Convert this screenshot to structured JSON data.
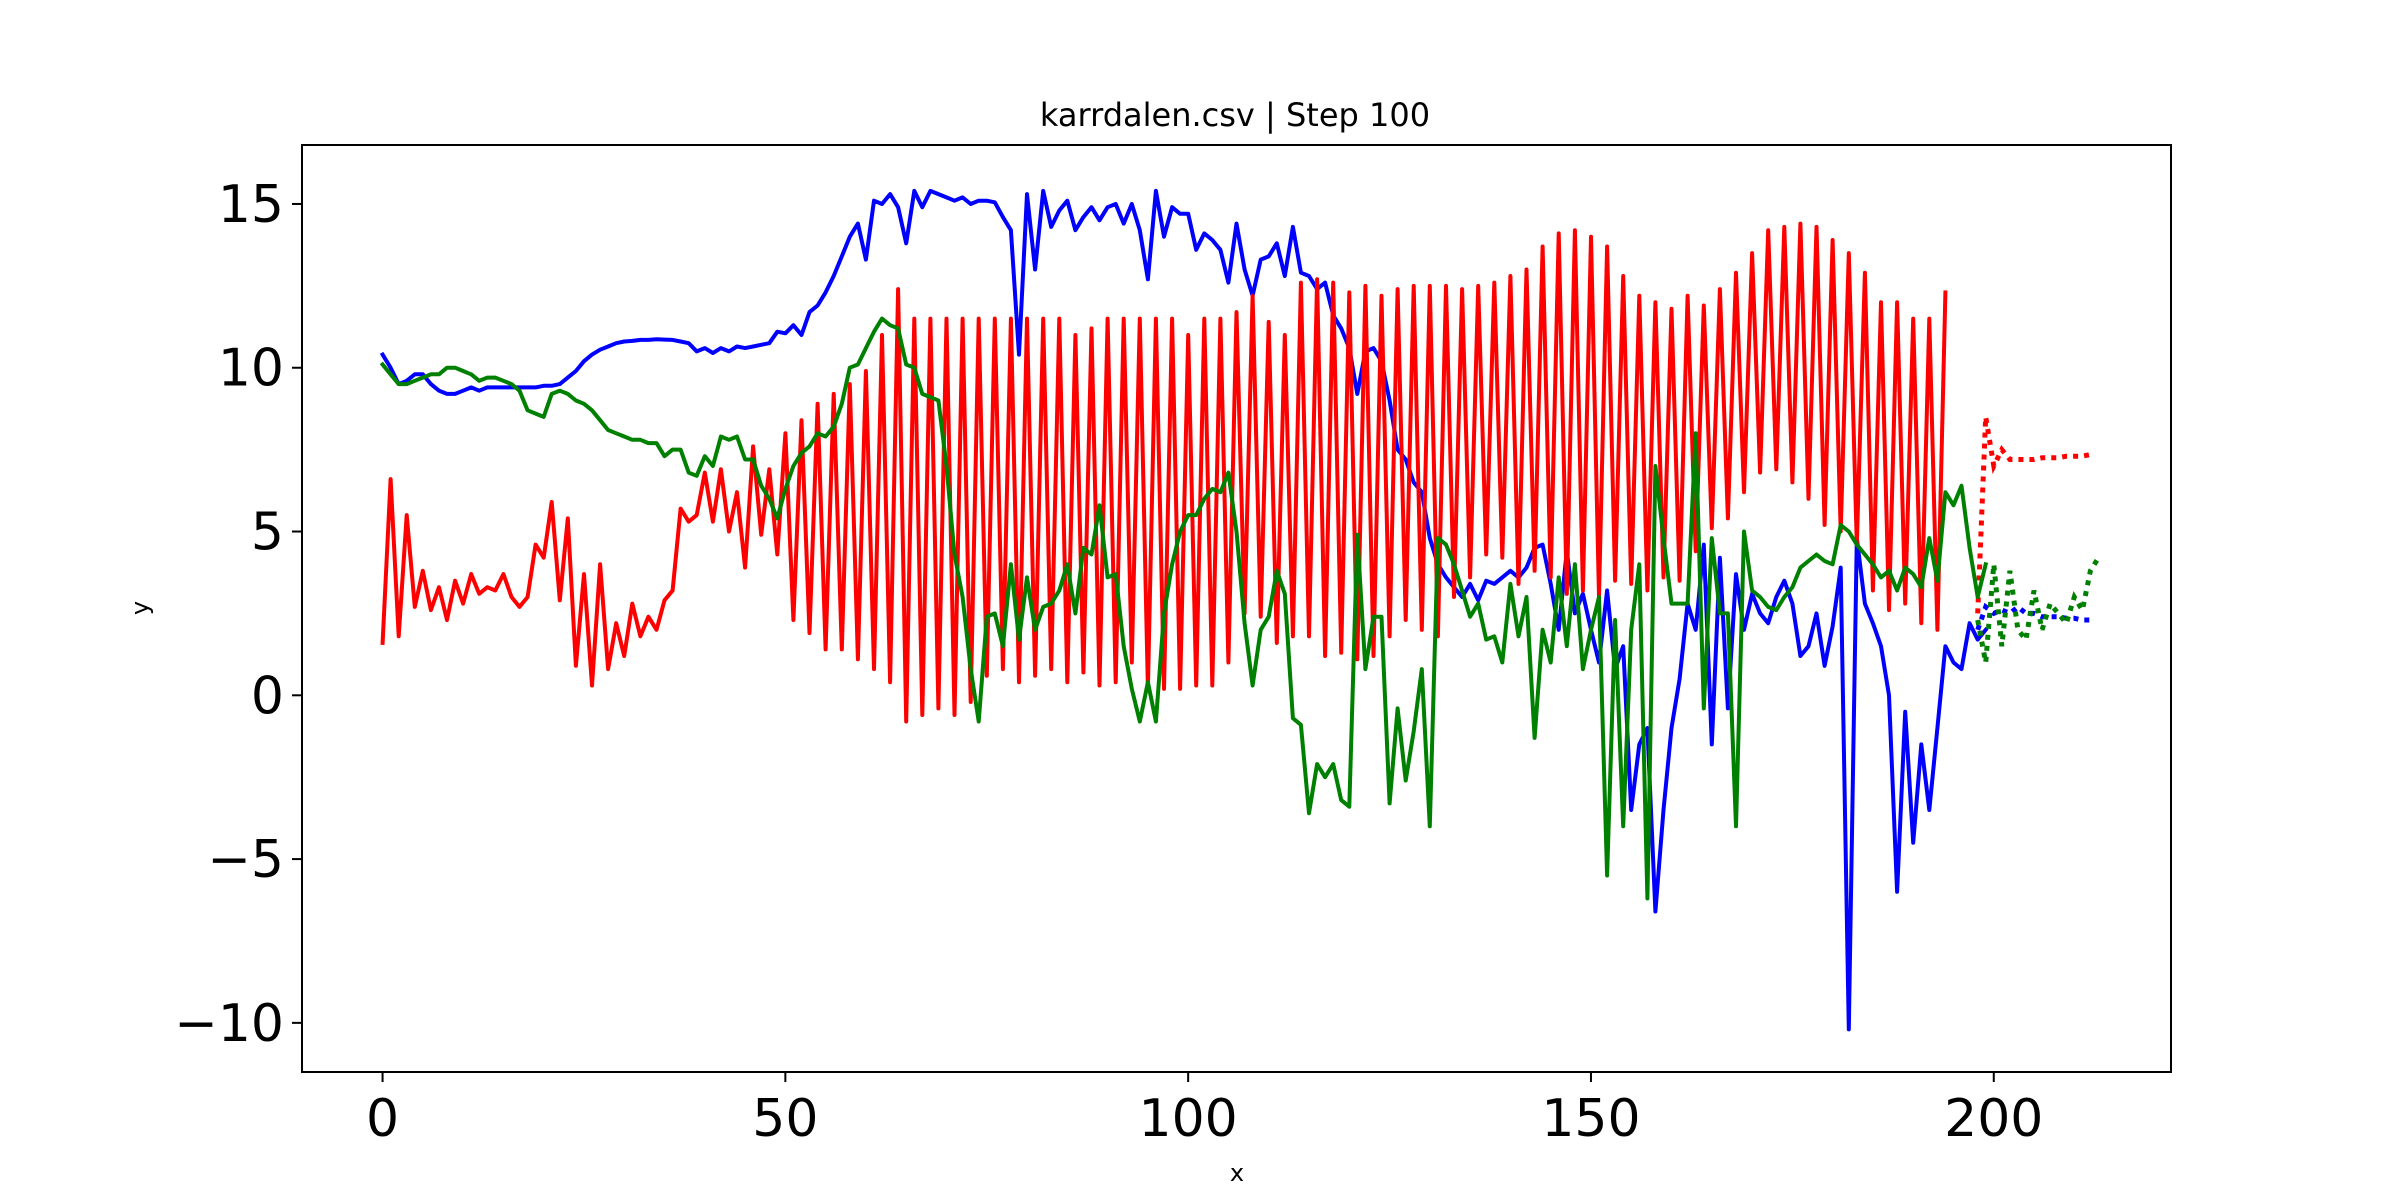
{
  "chart_data": {
    "type": "line",
    "title": "karrdalen.csv | Step 100",
    "xlabel": "x",
    "ylabel": "y",
    "xlim": [
      -10,
      222
    ],
    "ylim": [
      -11.5,
      16.8
    ],
    "xticks": [
      0,
      50,
      100,
      150,
      200
    ],
    "yticks": [
      -10,
      -5,
      0,
      5,
      10,
      15
    ],
    "xtick_labels": [
      "0",
      "50",
      "100",
      "150",
      "200"
    ],
    "ytick_labels": [
      "−10",
      "−5",
      "0",
      "5",
      "10",
      "15"
    ],
    "grid": false,
    "legend": "none",
    "series": [
      {
        "color": "#0000ff",
        "style": "solid",
        "x_start": 0,
        "values": [
          10.4,
          10.0,
          9.5,
          9.6,
          9.8,
          9.8,
          9.5,
          9.3,
          9.2,
          9.2,
          9.3,
          9.4,
          9.3,
          9.4,
          9.4,
          9.4,
          9.4,
          9.4,
          9.4,
          9.4,
          9.45,
          9.45,
          9.5,
          9.7,
          9.9,
          10.2,
          10.4,
          10.55,
          10.65,
          10.75,
          10.8,
          10.82,
          10.85,
          10.85,
          10.87,
          10.86,
          10.85,
          10.8,
          10.75,
          10.5,
          10.6,
          10.45,
          10.6,
          10.5,
          10.65,
          10.6,
          10.65,
          10.7,
          10.75,
          11.1,
          11.05,
          11.3,
          11.0,
          11.7,
          11.9,
          12.3,
          12.8,
          13.4,
          14.0,
          14.4,
          13.3,
          15.1,
          15.0,
          15.3,
          14.9,
          13.8,
          15.4,
          14.9,
          15.4,
          15.3,
          15.2,
          15.1,
          15.2,
          15.0,
          15.1,
          15.1,
          15.05,
          14.6,
          14.2,
          10.4,
          15.3,
          13.0,
          15.4,
          14.3,
          14.8,
          15.1,
          14.2,
          14.6,
          14.9,
          14.5,
          14.9,
          15.0,
          14.4,
          15.0,
          14.2,
          12.7,
          15.4,
          14.0,
          14.9,
          14.7,
          14.7,
          13.6,
          14.1,
          13.9,
          13.6,
          12.6,
          14.4,
          13.0,
          12.2,
          13.3,
          13.4,
          13.8,
          12.8,
          14.3,
          12.9,
          12.8,
          12.4,
          12.6,
          11.6,
          11.2,
          10.6,
          9.2,
          10.5,
          10.6,
          10.2,
          9.0,
          7.5,
          7.2,
          6.5,
          6.2,
          4.8,
          4.0,
          3.6,
          3.3,
          3.0,
          3.4,
          2.9,
          3.5,
          3.4,
          3.6,
          3.8,
          3.6,
          3.9,
          4.5,
          4.6,
          3.4,
          2.0,
          4.4,
          2.5,
          3.1,
          2.0,
          1.0,
          3.2,
          0.8,
          1.5,
          -3.5,
          -1.5,
          -1.0,
          -6.6,
          -3.5,
          -1.0,
          0.5,
          2.8,
          2.0,
          4.6,
          -1.5,
          4.2,
          -0.4,
          3.7,
          2.0,
          3.1,
          2.5,
          2.2,
          3.0,
          3.5,
          2.8,
          1.2,
          1.5,
          2.5,
          0.9,
          2.1,
          3.9,
          -10.2,
          4.8,
          2.8,
          2.2,
          1.5,
          0.0,
          -6.0,
          -0.5,
          -4.5,
          -1.5,
          -3.5,
          -1.0,
          1.5,
          1.0,
          0.8,
          2.2,
          1.7,
          2.0
        ],
        "forecast_x_start": 198,
        "forecast": [
          2.0,
          2.7,
          2.5,
          2.6,
          2.5,
          2.7,
          2.5,
          2.5,
          2.4,
          2.4,
          2.4,
          2.35,
          2.35,
          2.3,
          2.3
        ]
      },
      {
        "color": "#ff0000",
        "style": "solid",
        "x_start": 0,
        "values": [
          1.6,
          6.6,
          1.8,
          5.5,
          2.7,
          3.8,
          2.6,
          3.3,
          2.3,
          3.5,
          2.8,
          3.7,
          3.1,
          3.3,
          3.2,
          3.7,
          3.0,
          2.7,
          3.0,
          4.6,
          4.2,
          5.9,
          2.9,
          5.4,
          0.9,
          3.7,
          0.3,
          4.0,
          0.8,
          2.2,
          1.2,
          2.8,
          1.8,
          2.4,
          2.0,
          2.9,
          3.2,
          5.7,
          5.3,
          5.5,
          6.8,
          5.3,
          6.9,
          5.0,
          6.2,
          3.9,
          7.6,
          4.9,
          6.9,
          4.3,
          8.0,
          2.3,
          8.4,
          1.9,
          8.9,
          1.4,
          9.2,
          1.4,
          9.5,
          1.1,
          9.9,
          0.8,
          11.0,
          0.4,
          12.4,
          -0.8,
          11.5,
          -0.6,
          11.5,
          -0.4,
          11.5,
          -0.6,
          11.5,
          -0.2,
          11.5,
          0.6,
          11.5,
          0.8,
          11.5,
          0.4,
          11.5,
          0.6,
          11.5,
          0.8,
          11.5,
          0.4,
          11.0,
          0.7,
          11.2,
          0.3,
          11.5,
          0.4,
          11.5,
          1.0,
          11.5,
          0.2,
          11.5,
          0.2,
          11.5,
          0.2,
          11.0,
          0.3,
          11.5,
          0.3,
          11.5,
          1.0,
          11.7,
          2.5,
          12.2,
          2.4,
          11.4,
          1.6,
          11.0,
          1.8,
          12.6,
          1.8,
          12.7,
          1.2,
          12.6,
          1.3,
          12.3,
          1.1,
          12.5,
          1.2,
          12.2,
          1.8,
          12.4,
          2.3,
          12.5,
          2.0,
          12.5,
          1.8,
          12.5,
          3.0,
          12.4,
          3.6,
          12.5,
          4.3,
          12.6,
          4.2,
          12.8,
          3.4,
          13.0,
          3.8,
          13.7,
          3.6,
          14.1,
          3.1,
          14.2,
          3.2,
          14.0,
          3.0,
          13.7,
          3.5,
          12.8,
          3.4,
          12.2,
          3.2,
          12.0,
          3.6,
          11.8,
          3.5,
          12.2,
          4.4,
          11.9,
          5.1,
          12.4,
          5.4,
          12.9,
          6.2,
          13.5,
          6.8,
          14.2,
          6.9,
          14.3,
          6.5,
          14.4,
          6.0,
          14.3,
          5.2,
          13.9,
          5.0,
          13.5,
          4.6,
          12.9,
          3.2,
          12.0,
          2.6,
          12.0,
          2.8,
          11.5,
          2.2,
          11.5,
          2.0,
          12.3
        ],
        "forecast_x_start": 198,
        "forecast": [
          2.5,
          8.5,
          7.0,
          7.5,
          7.2,
          7.2,
          7.2,
          7.2,
          7.25,
          7.25,
          7.25,
          7.3,
          7.3,
          7.3,
          7.35
        ]
      },
      {
        "color": "#008000",
        "style": "solid",
        "x_start": 0,
        "values": [
          10.1,
          9.8,
          9.5,
          9.5,
          9.6,
          9.7,
          9.8,
          9.8,
          10.0,
          10.0,
          9.9,
          9.8,
          9.6,
          9.7,
          9.7,
          9.6,
          9.5,
          9.3,
          8.7,
          8.6,
          8.5,
          9.2,
          9.3,
          9.2,
          9.0,
          8.9,
          8.7,
          8.4,
          8.1,
          8.0,
          7.9,
          7.8,
          7.8,
          7.7,
          7.7,
          7.3,
          7.5,
          7.5,
          6.8,
          6.7,
          7.3,
          7.0,
          7.9,
          7.8,
          7.9,
          7.2,
          7.2,
          6.4,
          6.0,
          5.4,
          6.3,
          7.0,
          7.4,
          7.6,
          8.0,
          7.9,
          8.2,
          8.9,
          10.0,
          10.1,
          10.6,
          11.1,
          11.5,
          11.3,
          11.2,
          10.1,
          10.0,
          9.2,
          9.1,
          9.0,
          7.0,
          4.3,
          3.0,
          0.8,
          -0.8,
          2.4,
          2.5,
          1.5,
          4.0,
          1.7,
          3.6,
          2.0,
          2.7,
          2.8,
          3.2,
          4.0,
          2.5,
          4.5,
          4.3,
          5.8,
          3.6,
          3.7,
          1.5,
          0.2,
          -0.8,
          0.4,
          -0.8,
          2.5,
          4.0,
          5.0,
          5.5,
          5.5,
          6.0,
          6.3,
          6.2,
          6.8,
          5.0,
          2.2,
          0.3,
          2.0,
          2.4,
          3.8,
          3.1,
          -0.7,
          -0.9,
          -3.6,
          -2.1,
          -2.5,
          -2.1,
          -3.2,
          -3.4,
          4.9,
          0.8,
          2.4,
          2.4,
          -3.3,
          -0.4,
          -2.6,
          -1.1,
          0.8,
          -4.0,
          4.8,
          4.6,
          4.0,
          3.2,
          2.4,
          2.8,
          1.7,
          1.8,
          1.0,
          3.4,
          1.8,
          3.0,
          -1.3,
          2.0,
          1.0,
          3.6,
          1.5,
          4.0,
          0.8,
          2.0,
          3.0,
          -5.5,
          2.3,
          -4.0,
          2.0,
          4.0,
          -6.2,
          7.0,
          4.8,
          2.8,
          2.8,
          2.8,
          8.0,
          -0.4,
          4.8,
          2.5,
          2.5,
          -4.0,
          5.0,
          3.2,
          3.0,
          2.7,
          2.6,
          3.0,
          3.3,
          3.9,
          4.1,
          4.3,
          4.1,
          4.0,
          5.2,
          5.0,
          4.6,
          4.3,
          4.0,
          3.6,
          3.8,
          3.2,
          3.9,
          3.7,
          3.3,
          4.8,
          3.5,
          6.2,
          5.8,
          6.4,
          4.5,
          3.0,
          4.0
        ],
        "forecast_x_start": 198,
        "forecast": [
          2.3,
          1.0,
          4.0,
          1.5,
          3.8,
          2.0,
          1.7,
          3.2,
          2.0,
          2.8,
          2.5,
          2.2,
          3.0,
          2.6,
          3.8,
          4.2
        ]
      }
    ]
  }
}
